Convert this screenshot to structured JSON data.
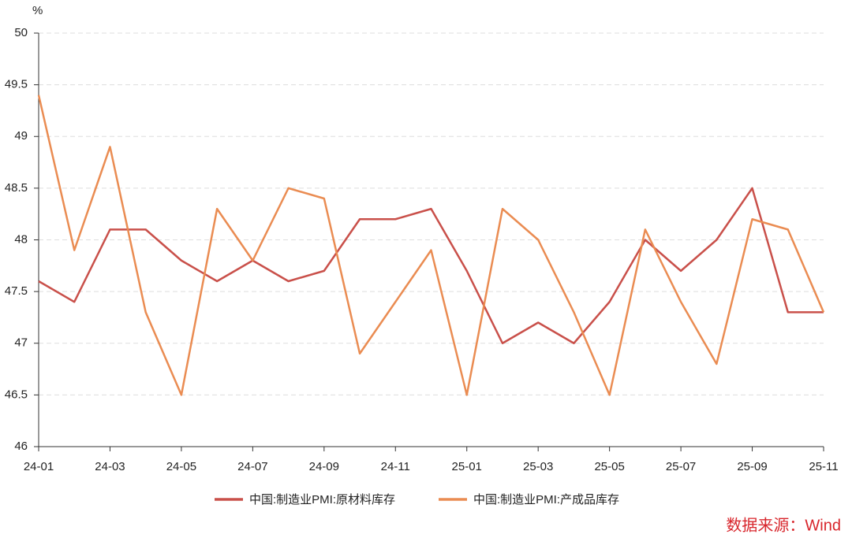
{
  "chart_data": {
    "type": "line",
    "y_unit": "%",
    "source": "数据来源：Wind",
    "categories": [
      "24-01",
      null,
      "24-03",
      null,
      "24-05",
      null,
      "24-07",
      null,
      "24-09",
      null,
      "24-11",
      null,
      "25-01",
      null,
      "25-03",
      null,
      "25-05",
      null,
      "25-07",
      null,
      "25-09",
      null,
      "25-11"
    ],
    "series": [
      {
        "name": "中国:制造业PMI:原材料库存",
        "color": "#c9504a",
        "values": [
          47.6,
          47.4,
          48.1,
          48.1,
          47.8,
          47.6,
          47.8,
          47.6,
          47.7,
          48.2,
          48.2,
          48.3,
          47.7,
          47.0,
          47.2,
          47.0,
          47.4,
          48.0,
          47.7,
          48.0,
          48.5,
          47.3,
          47.3
        ]
      },
      {
        "name": "中国:制造业PMI:产成品库存",
        "color": "#ea8c52",
        "values": [
          49.4,
          47.9,
          48.9,
          47.3,
          46.5,
          48.3,
          47.8,
          48.5,
          48.4,
          46.9,
          47.4,
          47.9,
          46.5,
          48.3,
          48.0,
          47.3,
          46.5,
          48.1,
          47.4,
          46.8,
          48.2,
          48.1,
          47.3
        ]
      }
    ],
    "ylim": [
      46,
      50
    ],
    "yticks": [
      46,
      46.5,
      47,
      47.5,
      48,
      48.5,
      49,
      49.5,
      50
    ],
    "grid": true
  }
}
